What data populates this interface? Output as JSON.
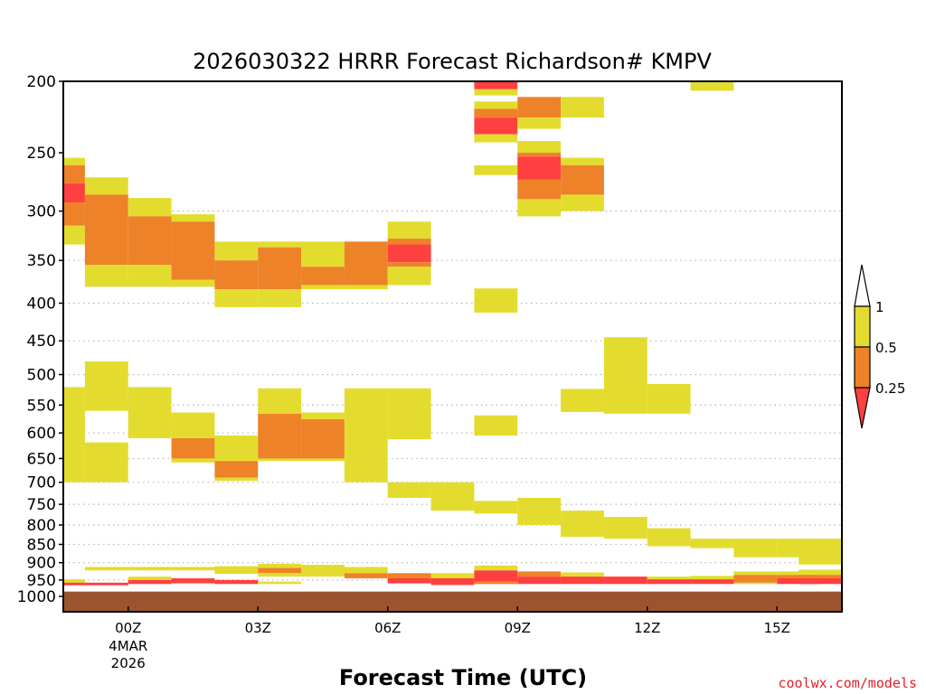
{
  "chart_data": {
    "type": "heatmap",
    "title": "2026030322 HRRR Forecast Richardson# KMPV",
    "xlabel": "Forecast Time (UTC)",
    "credit": "coolwx.com/models",
    "y_axis": {
      "label": "",
      "scale": "log-pressure",
      "ylim": [
        1000,
        200
      ],
      "ticks": [
        "200",
        "250",
        "300",
        "350",
        "400",
        "450",
        "500",
        "550",
        "600",
        "650",
        "700",
        "750",
        "800",
        "850",
        "900",
        "950",
        "1000"
      ],
      "grid_levels": [
        300,
        350,
        400,
        450,
        500,
        550,
        600,
        650,
        700,
        750,
        800,
        850,
        900,
        950,
        1000
      ]
    },
    "x_axis": {
      "range_hours": [
        -1.5,
        16.5
      ],
      "ticks": [
        {
          "hour": 0,
          "label": "00Z",
          "sublabel1": "4MAR",
          "sublabel2": "2026"
        },
        {
          "hour": 3,
          "label": "03Z"
        },
        {
          "hour": 6,
          "label": "06Z"
        },
        {
          "hour": 9,
          "label": "09Z"
        },
        {
          "hour": 12,
          "label": "12Z"
        },
        {
          "hour": 15,
          "label": "15Z"
        }
      ]
    },
    "legend": {
      "placement": "right",
      "labels": [
        "1",
        "0.5",
        "0.25"
      ],
      "colors": {
        "top": "#ffffff",
        "mid_high": "#e3dc2e",
        "mid_low": "#ee8229",
        "bottom": "#ff4040"
      }
    },
    "colors": {
      "yellow": "#e3dc2e",
      "orange": "#ee8229",
      "red": "#ff4040",
      "ground": "#9c5430",
      "grid": "#b4b4b4"
    },
    "ground_level": 985,
    "cells": [
      {
        "t": -1.5,
        "p1": 254,
        "p2": 260,
        "c": "yellow"
      },
      {
        "t": -1.5,
        "p1": 260,
        "p2": 275,
        "c": "orange"
      },
      {
        "t": -1.5,
        "p1": 275,
        "p2": 292,
        "c": "red"
      },
      {
        "t": -1.5,
        "p1": 292,
        "p2": 314,
        "c": "orange"
      },
      {
        "t": -1.5,
        "p1": 314,
        "p2": 333,
        "c": "yellow"
      },
      {
        "t": -1.5,
        "p1": 520,
        "p2": 605,
        "c": "yellow"
      },
      {
        "t": -1.5,
        "p1": 605,
        "p2": 700,
        "c": "yellow"
      },
      {
        "t": -1.5,
        "p1": 948,
        "p2": 958,
        "c": "yellow"
      },
      {
        "t": -1.5,
        "p1": 958,
        "p2": 966,
        "c": "red"
      },
      {
        "t": -0.5,
        "p1": 270,
        "p2": 285,
        "c": "yellow"
      },
      {
        "t": -0.5,
        "p1": 285,
        "p2": 355,
        "c": "orange"
      },
      {
        "t": -0.5,
        "p1": 355,
        "p2": 380,
        "c": "yellow"
      },
      {
        "t": -0.5,
        "p1": 480,
        "p2": 560,
        "c": "yellow"
      },
      {
        "t": -0.5,
        "p1": 618,
        "p2": 700,
        "c": "yellow"
      },
      {
        "t": -0.5,
        "p1": 912,
        "p2": 922,
        "c": "yellow"
      },
      {
        "t": -0.5,
        "p1": 958,
        "p2": 966,
        "c": "red"
      },
      {
        "t": 0.5,
        "p1": 288,
        "p2": 305,
        "c": "yellow"
      },
      {
        "t": 0.5,
        "p1": 305,
        "p2": 355,
        "c": "orange"
      },
      {
        "t": 0.5,
        "p1": 355,
        "p2": 380,
        "c": "yellow"
      },
      {
        "t": 0.5,
        "p1": 520,
        "p2": 610,
        "c": "yellow"
      },
      {
        "t": 0.5,
        "p1": 912,
        "p2": 922,
        "c": "yellow"
      },
      {
        "t": 0.5,
        "p1": 940,
        "p2": 950,
        "c": "yellow"
      },
      {
        "t": 0.5,
        "p1": 950,
        "p2": 962,
        "c": "red"
      },
      {
        "t": 1.5,
        "p1": 303,
        "p2": 310,
        "c": "yellow"
      },
      {
        "t": 1.5,
        "p1": 310,
        "p2": 372,
        "c": "orange"
      },
      {
        "t": 1.5,
        "p1": 372,
        "p2": 380,
        "c": "yellow"
      },
      {
        "t": 1.5,
        "p1": 563,
        "p2": 610,
        "c": "yellow"
      },
      {
        "t": 1.5,
        "p1": 610,
        "p2": 650,
        "c": "orange"
      },
      {
        "t": 1.5,
        "p1": 650,
        "p2": 658,
        "c": "yellow"
      },
      {
        "t": 1.5,
        "p1": 912,
        "p2": 922,
        "c": "yellow"
      },
      {
        "t": 1.5,
        "p1": 945,
        "p2": 960,
        "c": "red"
      },
      {
        "t": 2.5,
        "p1": 330,
        "p2": 350,
        "c": "yellow"
      },
      {
        "t": 2.5,
        "p1": 350,
        "p2": 383,
        "c": "orange"
      },
      {
        "t": 2.5,
        "p1": 383,
        "p2": 405,
        "c": "yellow"
      },
      {
        "t": 2.5,
        "p1": 605,
        "p2": 655,
        "c": "yellow"
      },
      {
        "t": 2.5,
        "p1": 655,
        "p2": 690,
        "c": "orange"
      },
      {
        "t": 2.5,
        "p1": 690,
        "p2": 697,
        "c": "yellow"
      },
      {
        "t": 2.5,
        "p1": 910,
        "p2": 932,
        "c": "yellow"
      },
      {
        "t": 2.5,
        "p1": 950,
        "p2": 962,
        "c": "red"
      },
      {
        "t": 3.5,
        "p1": 330,
        "p2": 336,
        "c": "yellow"
      },
      {
        "t": 3.5,
        "p1": 336,
        "p2": 383,
        "c": "orange"
      },
      {
        "t": 3.5,
        "p1": 383,
        "p2": 405,
        "c": "yellow"
      },
      {
        "t": 3.5,
        "p1": 522,
        "p2": 565,
        "c": "yellow"
      },
      {
        "t": 3.5,
        "p1": 565,
        "p2": 650,
        "c": "orange"
      },
      {
        "t": 3.5,
        "p1": 650,
        "p2": 655,
        "c": "yellow"
      },
      {
        "t": 3.5,
        "p1": 903,
        "p2": 915,
        "c": "yellow"
      },
      {
        "t": 3.5,
        "p1": 915,
        "p2": 930,
        "c": "orange"
      },
      {
        "t": 3.5,
        "p1": 930,
        "p2": 940,
        "c": "yellow"
      },
      {
        "t": 3.5,
        "p1": 955,
        "p2": 962,
        "c": "yellow"
      },
      {
        "t": 4.5,
        "p1": 330,
        "p2": 357,
        "c": "yellow"
      },
      {
        "t": 4.5,
        "p1": 357,
        "p2": 378,
        "c": "orange"
      },
      {
        "t": 4.5,
        "p1": 378,
        "p2": 383,
        "c": "yellow"
      },
      {
        "t": 4.5,
        "p1": 563,
        "p2": 575,
        "c": "yellow"
      },
      {
        "t": 4.5,
        "p1": 575,
        "p2": 650,
        "c": "orange"
      },
      {
        "t": 4.5,
        "p1": 650,
        "p2": 655,
        "c": "yellow"
      },
      {
        "t": 4.5,
        "p1": 906,
        "p2": 940,
        "c": "yellow"
      },
      {
        "t": 5.5,
        "p1": 330,
        "p2": 378,
        "c": "orange"
      },
      {
        "t": 5.5,
        "p1": 378,
        "p2": 383,
        "c": "yellow"
      },
      {
        "t": 5.5,
        "p1": 522,
        "p2": 700,
        "c": "yellow"
      },
      {
        "t": 5.5,
        "p1": 912,
        "p2": 930,
        "c": "yellow"
      },
      {
        "t": 5.5,
        "p1": 930,
        "p2": 945,
        "c": "orange"
      },
      {
        "t": 6.5,
        "p1": 310,
        "p2": 327,
        "c": "yellow"
      },
      {
        "t": 6.5,
        "p1": 327,
        "p2": 333,
        "c": "orange"
      },
      {
        "t": 6.5,
        "p1": 333,
        "p2": 352,
        "c": "red"
      },
      {
        "t": 6.5,
        "p1": 352,
        "p2": 357,
        "c": "orange"
      },
      {
        "t": 6.5,
        "p1": 357,
        "p2": 378,
        "c": "yellow"
      },
      {
        "t": 6.5,
        "p1": 522,
        "p2": 612,
        "c": "yellow"
      },
      {
        "t": 6.5,
        "p1": 700,
        "p2": 735,
        "c": "yellow"
      },
      {
        "t": 6.5,
        "p1": 930,
        "p2": 945,
        "c": "orange"
      },
      {
        "t": 6.5,
        "p1": 945,
        "p2": 960,
        "c": "red"
      },
      {
        "t": 7.5,
        "p1": 700,
        "p2": 765,
        "c": "yellow"
      },
      {
        "t": 7.5,
        "p1": 930,
        "p2": 945,
        "c": "yellow"
      },
      {
        "t": 7.5,
        "p1": 945,
        "p2": 965,
        "c": "red"
      },
      {
        "t": 8.5,
        "p1": 200,
        "p2": 205,
        "c": "red"
      },
      {
        "t": 8.5,
        "p1": 205,
        "p2": 209,
        "c": "yellow"
      },
      {
        "t": 8.5,
        "p1": 213,
        "p2": 218,
        "c": "yellow"
      },
      {
        "t": 8.5,
        "p1": 218,
        "p2": 224,
        "c": "orange"
      },
      {
        "t": 8.5,
        "p1": 224,
        "p2": 236,
        "c": "red"
      },
      {
        "t": 8.5,
        "p1": 236,
        "p2": 242,
        "c": "yellow"
      },
      {
        "t": 8.5,
        "p1": 260,
        "p2": 268,
        "c": "yellow"
      },
      {
        "t": 8.5,
        "p1": 382,
        "p2": 412,
        "c": "yellow"
      },
      {
        "t": 8.5,
        "p1": 568,
        "p2": 605,
        "c": "yellow"
      },
      {
        "t": 8.5,
        "p1": 742,
        "p2": 772,
        "c": "yellow"
      },
      {
        "t": 8.5,
        "p1": 908,
        "p2": 922,
        "c": "yellow"
      },
      {
        "t": 8.5,
        "p1": 922,
        "p2": 955,
        "c": "red"
      },
      {
        "t": 8.5,
        "p1": 955,
        "p2": 962,
        "c": "orange"
      },
      {
        "t": 9.5,
        "p1": 210,
        "p2": 224,
        "c": "orange"
      },
      {
        "t": 9.5,
        "p1": 224,
        "p2": 232,
        "c": "yellow"
      },
      {
        "t": 9.5,
        "p1": 241,
        "p2": 250,
        "c": "yellow"
      },
      {
        "t": 9.5,
        "p1": 250,
        "p2": 253,
        "c": "orange"
      },
      {
        "t": 9.5,
        "p1": 253,
        "p2": 272,
        "c": "red"
      },
      {
        "t": 9.5,
        "p1": 272,
        "p2": 289,
        "c": "orange"
      },
      {
        "t": 9.5,
        "p1": 289,
        "p2": 305,
        "c": "yellow"
      },
      {
        "t": 9.5,
        "p1": 735,
        "p2": 800,
        "c": "yellow"
      },
      {
        "t": 9.5,
        "p1": 925,
        "p2": 940,
        "c": "orange"
      },
      {
        "t": 9.5,
        "p1": 940,
        "p2": 962,
        "c": "red"
      },
      {
        "t": 10.5,
        "p1": 210,
        "p2": 224,
        "c": "yellow"
      },
      {
        "t": 10.5,
        "p1": 254,
        "p2": 260,
        "c": "yellow"
      },
      {
        "t": 10.5,
        "p1": 260,
        "p2": 285,
        "c": "orange"
      },
      {
        "t": 10.5,
        "p1": 285,
        "p2": 300,
        "c": "yellow"
      },
      {
        "t": 10.5,
        "p1": 523,
        "p2": 562,
        "c": "yellow"
      },
      {
        "t": 10.5,
        "p1": 765,
        "p2": 830,
        "c": "yellow"
      },
      {
        "t": 10.5,
        "p1": 928,
        "p2": 940,
        "c": "yellow"
      },
      {
        "t": 10.5,
        "p1": 940,
        "p2": 962,
        "c": "red"
      },
      {
        "t": 11.5,
        "p1": 445,
        "p2": 565,
        "c": "yellow"
      },
      {
        "t": 11.5,
        "p1": 780,
        "p2": 835,
        "c": "yellow"
      },
      {
        "t": 11.5,
        "p1": 940,
        "p2": 962,
        "c": "red"
      },
      {
        "t": 12.5,
        "p1": 515,
        "p2": 565,
        "c": "yellow"
      },
      {
        "t": 12.5,
        "p1": 808,
        "p2": 855,
        "c": "yellow"
      },
      {
        "t": 12.5,
        "p1": 940,
        "p2": 948,
        "c": "yellow"
      },
      {
        "t": 12.5,
        "p1": 948,
        "p2": 962,
        "c": "red"
      },
      {
        "t": 13.5,
        "p1": 200,
        "p2": 206,
        "c": "yellow"
      },
      {
        "t": 13.5,
        "p1": 835,
        "p2": 860,
        "c": "yellow"
      },
      {
        "t": 13.5,
        "p1": 938,
        "p2": 948,
        "c": "yellow"
      },
      {
        "t": 13.5,
        "p1": 948,
        "p2": 962,
        "c": "red"
      },
      {
        "t": 14.5,
        "p1": 835,
        "p2": 885,
        "c": "yellow"
      },
      {
        "t": 14.5,
        "p1": 925,
        "p2": 935,
        "c": "yellow"
      },
      {
        "t": 14.5,
        "p1": 935,
        "p2": 958,
        "c": "orange"
      },
      {
        "t": 14.5,
        "p1": 958,
        "p2": 962,
        "c": "yellow"
      },
      {
        "t": 15.5,
        "p1": 835,
        "p2": 885,
        "c": "yellow"
      },
      {
        "t": 15.5,
        "p1": 925,
        "p2": 935,
        "c": "yellow"
      },
      {
        "t": 15.5,
        "p1": 935,
        "p2": 945,
        "c": "orange"
      },
      {
        "t": 15.5,
        "p1": 945,
        "p2": 962,
        "c": "red"
      },
      {
        "t": 16.0,
        "p1": 835,
        "p2": 905,
        "c": "yellow"
      },
      {
        "t": 16.0,
        "p1": 920,
        "p2": 935,
        "c": "yellow"
      },
      {
        "t": 16.0,
        "p1": 935,
        "p2": 945,
        "c": "orange"
      },
      {
        "t": 16.0,
        "p1": 945,
        "p2": 962,
        "c": "red"
      }
    ]
  }
}
